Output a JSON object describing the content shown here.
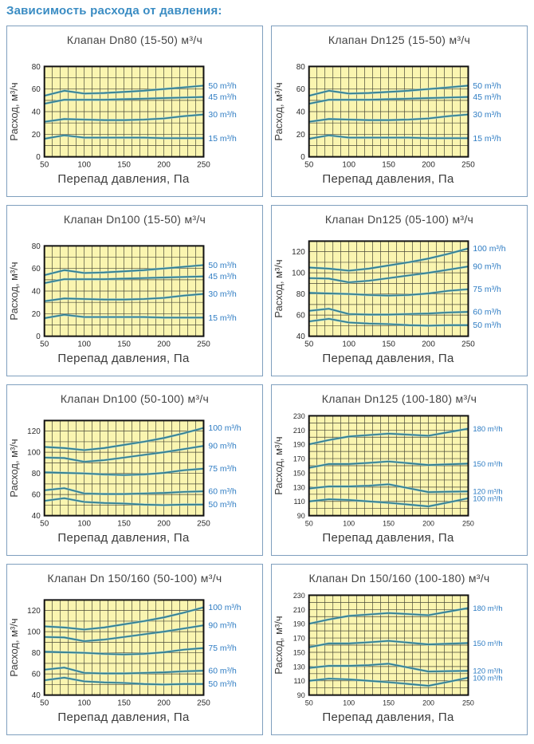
{
  "page": {
    "heading": "Зависимость расхода от давления:"
  },
  "colors": {
    "accent": "#3a8cc3",
    "plot_bg": "#faf5b0",
    "grid": "#4a4a38",
    "plot_border": "#111111",
    "line": "#2f7e8f",
    "line_halo": "#9ecbd3",
    "legend_text": "#2e7cc3",
    "tick_text": "#2b2b2b",
    "axis_text": "#3b3b3b",
    "panel_border": "#7f9fbe",
    "title_text": "#434343"
  },
  "chart_data": [
    {
      "type": "line",
      "title": "Клапан Dn80 (15-50) м³/ч",
      "xlabel": "Перепад давления, Па",
      "ylabel": "Расход, м³/ч",
      "x_min": 50,
      "x_max": 250,
      "x_ticks": [
        50,
        100,
        150,
        200,
        250
      ],
      "y_min": 0,
      "y_max": 80,
      "y_ticks": [
        0,
        20,
        40,
        60,
        80
      ],
      "grid_minor_step": 10,
      "tick_font": 10,
      "plot_top": 20,
      "legend_position": "right",
      "grid": "on",
      "x": [
        50,
        75,
        100,
        125,
        150,
        175,
        200,
        225,
        250
      ],
      "series": [
        {
          "name": "50 m³/h",
          "values": [
            54,
            58.5,
            56,
            56.5,
            57.5,
            58.5,
            60,
            61.5,
            63
          ]
        },
        {
          "name": "45 m³/h",
          "values": [
            47,
            50.5,
            50.5,
            50.5,
            51,
            51.5,
            52,
            52.5,
            53
          ]
        },
        {
          "name": "30 m³/h",
          "values": [
            31,
            33.5,
            33,
            32.5,
            32.5,
            33,
            34,
            36,
            37.5
          ]
        },
        {
          "name": "15 m³/h",
          "values": [
            16,
            19,
            17,
            17,
            17,
            17,
            16.5,
            16.5,
            16.5
          ]
        }
      ]
    },
    {
      "type": "line",
      "title": "Клапан Dn125 (15-50) м³/ч",
      "xlabel": "Перепад давления, Па",
      "ylabel": "Расход, м³/ч",
      "x_min": 50,
      "x_max": 250,
      "x_ticks": [
        50,
        100,
        150,
        200,
        250
      ],
      "y_min": 0,
      "y_max": 80,
      "y_ticks": [
        0,
        20,
        40,
        60,
        80
      ],
      "grid_minor_step": 10,
      "tick_font": 10,
      "plot_top": 20,
      "legend_position": "right",
      "grid": "on",
      "x": [
        50,
        75,
        100,
        125,
        150,
        175,
        200,
        225,
        250
      ],
      "series": [
        {
          "name": "50 m³/h",
          "values": [
            54,
            58.5,
            56,
            56.5,
            57.5,
            58.5,
            60,
            61.5,
            63
          ]
        },
        {
          "name": "45 m³/h",
          "values": [
            47,
            50.5,
            50.5,
            50.5,
            51,
            51.5,
            52,
            52.5,
            53
          ]
        },
        {
          "name": "30 m³/h",
          "values": [
            31,
            33.5,
            33,
            32.5,
            32.5,
            33,
            34,
            36,
            37.5
          ]
        },
        {
          "name": "15 m³/h",
          "values": [
            16,
            19,
            17,
            17,
            17,
            17,
            16.5,
            16.5,
            16.5
          ]
        }
      ]
    },
    {
      "type": "line",
      "title": "Клапан Dn100 (15-50) м³/ч",
      "xlabel": "Перепад давления, Па",
      "ylabel": "Расход, м³/ч",
      "x_min": 50,
      "x_max": 250,
      "x_ticks": [
        50,
        100,
        150,
        200,
        250
      ],
      "y_min": 0,
      "y_max": 80,
      "y_ticks": [
        0,
        20,
        40,
        60,
        80
      ],
      "grid_minor_step": 10,
      "tick_font": 10,
      "plot_top": 20,
      "legend_position": "right",
      "grid": "on",
      "x": [
        50,
        75,
        100,
        125,
        150,
        175,
        200,
        225,
        250
      ],
      "series": [
        {
          "name": "50 m³/h",
          "values": [
            54,
            58.5,
            56,
            56.5,
            57.5,
            58.5,
            60,
            61.5,
            63
          ]
        },
        {
          "name": "45 m³/h",
          "values": [
            47,
            50.5,
            50.5,
            50.5,
            51,
            51.5,
            52,
            52.5,
            53
          ]
        },
        {
          "name": "30 m³/h",
          "values": [
            31,
            33.5,
            33,
            32.5,
            32.5,
            33,
            34,
            36,
            37.5
          ]
        },
        {
          "name": "15 m³/h",
          "values": [
            16,
            19,
            17,
            17,
            17,
            17,
            16.5,
            16.5,
            16.5
          ]
        }
      ]
    },
    {
      "type": "line",
      "title": "Клапан Dn125 (05-100) м³/ч",
      "xlabel": "Перепад давления, Па",
      "ylabel": "Расход, м³/ч",
      "x_min": 50,
      "x_max": 250,
      "x_ticks": [
        50,
        100,
        150,
        200,
        250
      ],
      "y_min": 40,
      "y_max": 130,
      "y_ticks": [
        40,
        60,
        80,
        100,
        120
      ],
      "grid_minor_step": 10,
      "tick_font": 10,
      "plot_top": 14,
      "legend_position": "right",
      "grid": "on",
      "x": [
        50,
        75,
        100,
        125,
        150,
        175,
        200,
        225,
        250
      ],
      "series": [
        {
          "name": "100 m³/h",
          "values": [
            105,
            104,
            102,
            104,
            107,
            110,
            113.5,
            118,
            123
          ]
        },
        {
          "name": "90 m³/h",
          "values": [
            95,
            94.5,
            91,
            92.5,
            95,
            97.5,
            100,
            103,
            106
          ]
        },
        {
          "name": "75 m³/h",
          "values": [
            81,
            80.5,
            80,
            79,
            78.5,
            79,
            80.5,
            83,
            84.5
          ]
        },
        {
          "name": "60 m³/h",
          "values": [
            64,
            66,
            61,
            60.5,
            60.5,
            61,
            61.5,
            62.5,
            63
          ]
        },
        {
          "name": "50 m³/h",
          "values": [
            54,
            56.5,
            53,
            52,
            51.5,
            50.5,
            50,
            50.5,
            50.5
          ]
        }
      ]
    },
    {
      "type": "line",
      "title": "Клапан Dn100 (50-100) м³/ч",
      "xlabel": "Перепад давления, Па",
      "ylabel": "Расход, м³/ч",
      "x_min": 50,
      "x_max": 250,
      "x_ticks": [
        50,
        100,
        150,
        200,
        250
      ],
      "y_min": 40,
      "y_max": 130,
      "y_ticks": [
        40,
        60,
        80,
        100,
        120
      ],
      "grid_minor_step": 10,
      "tick_font": 10,
      "plot_top": 14,
      "legend_position": "right",
      "grid": "on",
      "x": [
        50,
        75,
        100,
        125,
        150,
        175,
        200,
        225,
        250
      ],
      "series": [
        {
          "name": "100 m³/h",
          "values": [
            105,
            104,
            102,
            104,
            107,
            110,
            113.5,
            118,
            123
          ]
        },
        {
          "name": "90 m³/h",
          "values": [
            95,
            94.5,
            91,
            92.5,
            95,
            97.5,
            100,
            103,
            106
          ]
        },
        {
          "name": "75 m³/h",
          "values": [
            81,
            80.5,
            80,
            79,
            78.5,
            79,
            80.5,
            83,
            84.5
          ]
        },
        {
          "name": "60 m³/h",
          "values": [
            64,
            66,
            61,
            60.5,
            60.5,
            61,
            61.5,
            62.5,
            63
          ]
        },
        {
          "name": "50 m³/h",
          "values": [
            54,
            56.5,
            53,
            52,
            51.5,
            50.5,
            50,
            50.5,
            50.5
          ]
        }
      ]
    },
    {
      "type": "line",
      "title": "Клапан Dn125 (100-180) м³/ч",
      "xlabel": "Перепад давления, Па",
      "ylabel": "Расход, м³/ч",
      "x_min": 50,
      "x_max": 250,
      "x_ticks": [
        50,
        100,
        150,
        200,
        250
      ],
      "y_min": 90,
      "y_max": 230,
      "y_ticks": [
        90,
        110,
        130,
        150,
        170,
        190,
        210,
        230
      ],
      "grid_minor_step": 10,
      "tick_font": 9,
      "plot_top": 8,
      "legend_position": "right",
      "grid": "on",
      "x": [
        50,
        75,
        100,
        125,
        150,
        175,
        200,
        225,
        250
      ],
      "series": [
        {
          "name": "180 m³/h",
          "values": [
            190,
            196,
            201,
            203,
            205,
            203.5,
            202,
            207,
            212
          ]
        },
        {
          "name": "150 m³/h",
          "values": [
            157,
            162.5,
            162.5,
            164,
            166,
            163.5,
            161,
            162,
            163
          ]
        },
        {
          "name": "120 m³/h",
          "values": [
            128,
            131,
            131,
            132,
            134,
            128.5,
            123,
            123.5,
            124
          ]
        },
        {
          "name": "100 m³/h",
          "values": [
            110,
            113,
            112,
            110,
            108,
            105.5,
            103,
            108.5,
            114.5
          ]
        }
      ]
    },
    {
      "type": "line",
      "title": "Клапан Dn 150/160 (50-100) м³/ч",
      "xlabel": "Перепад давления, Па",
      "ylabel": "Расход, м³/ч",
      "x_min": 50,
      "x_max": 250,
      "x_ticks": [
        50,
        100,
        150,
        200,
        250
      ],
      "y_min": 40,
      "y_max": 130,
      "y_ticks": [
        40,
        60,
        80,
        100,
        120
      ],
      "grid_minor_step": 10,
      "tick_font": 10,
      "plot_top": 14,
      "legend_position": "right",
      "grid": "on",
      "x": [
        50,
        75,
        100,
        125,
        150,
        175,
        200,
        225,
        250
      ],
      "series": [
        {
          "name": "100 m³/h",
          "values": [
            105,
            104,
            102,
            104,
            107,
            110,
            113.5,
            118,
            123
          ]
        },
        {
          "name": "90 m³/h",
          "values": [
            95,
            94.5,
            91,
            92.5,
            95,
            97.5,
            100,
            103,
            106
          ]
        },
        {
          "name": "75 m³/h",
          "values": [
            81,
            80.5,
            80,
            79,
            78.5,
            79,
            80.5,
            83,
            84.5
          ]
        },
        {
          "name": "60 m³/h",
          "values": [
            64,
            66,
            61,
            60.5,
            60.5,
            61,
            61.5,
            62.5,
            63
          ]
        },
        {
          "name": "50 m³/h",
          "values": [
            54,
            56.5,
            53,
            52,
            51.5,
            50.5,
            50,
            50.5,
            50.5
          ]
        }
      ]
    },
    {
      "type": "line",
      "title": "Клапан Dn 150/160 (100-180) м³/ч",
      "xlabel": "Перепад давления, Па",
      "ylabel": "Расход, м³/ч",
      "x_min": 50,
      "x_max": 250,
      "x_ticks": [
        50,
        100,
        150,
        200,
        250
      ],
      "y_min": 90,
      "y_max": 230,
      "y_ticks": [
        90,
        110,
        130,
        150,
        170,
        190,
        210,
        230
      ],
      "grid_minor_step": 10,
      "tick_font": 9,
      "plot_top": 8,
      "legend_position": "right",
      "grid": "on",
      "x": [
        50,
        75,
        100,
        125,
        150,
        175,
        200,
        225,
        250
      ],
      "series": [
        {
          "name": "180 m³/h",
          "values": [
            190,
            196,
            201,
            203,
            205,
            203.5,
            202,
            207,
            212
          ]
        },
        {
          "name": "150 m³/h",
          "values": [
            157,
            162.5,
            162.5,
            164,
            166,
            163.5,
            161,
            162,
            163
          ]
        },
        {
          "name": "120 m³/h",
          "values": [
            128,
            131,
            131,
            132,
            134,
            128.5,
            123,
            123.5,
            124
          ]
        },
        {
          "name": "100 m³/h",
          "values": [
            110,
            113,
            112,
            110,
            108,
            105.5,
            103,
            108.5,
            114.5
          ]
        }
      ]
    }
  ]
}
